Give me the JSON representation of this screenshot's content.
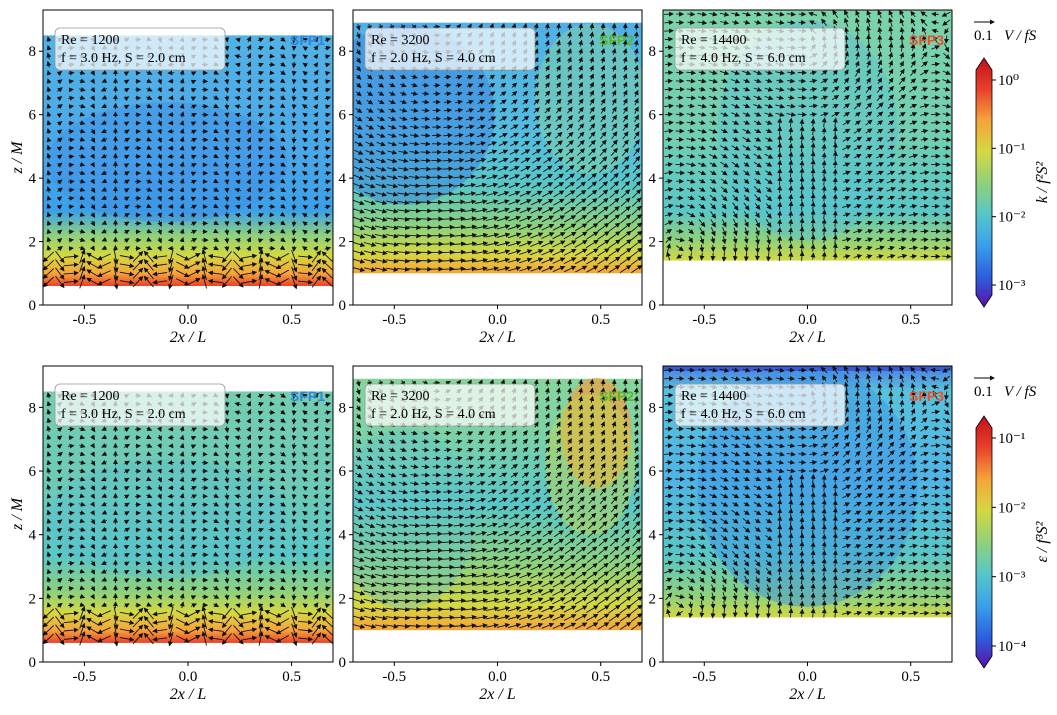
{
  "chart_data": [
    {
      "type": "heatmap",
      "panel_tag": "SFP1",
      "tag_color": "#2e86de",
      "info_line1": "Re = 1200",
      "info_line2": "f = 3.0 Hz, S = 2.0 cm",
      "xlabel": "2x / L",
      "ylabel": "z / M",
      "xlim": [
        -0.7,
        0.7
      ],
      "ylim": [
        0,
        9.3
      ],
      "fluid_range_z": [
        0.6,
        8.5
      ],
      "xticks": [
        "-0.5",
        "0.0",
        "0.5"
      ],
      "yticks": [
        "0",
        "2",
        "4",
        "6",
        "8"
      ],
      "field": "k / f²S²"
    },
    {
      "type": "heatmap",
      "panel_tag": "SFP2",
      "tag_color": "#55b82a",
      "info_line1": "Re = 3200",
      "info_line2": "f = 2.0 Hz, S = 4.0 cm",
      "xlabel": "2x / L",
      "ylabel": "",
      "xlim": [
        -0.7,
        0.7
      ],
      "ylim": [
        0,
        9.3
      ],
      "fluid_range_z": [
        1.0,
        8.9
      ],
      "xticks": [
        "-0.5",
        "0.0",
        "0.5"
      ],
      "yticks": [
        "0",
        "2",
        "4",
        "6",
        "8"
      ],
      "field": "k / f²S²"
    },
    {
      "type": "heatmap",
      "panel_tag": "SFP3",
      "tag_color": "#e8502a",
      "info_line1": "Re = 14400",
      "info_line2": "f = 4.0 Hz, S = 6.0 cm",
      "xlabel": "2x / L",
      "ylabel": "",
      "xlim": [
        -0.7,
        0.7
      ],
      "ylim": [
        0,
        9.3
      ],
      "fluid_range_z": [
        1.4,
        9.3
      ],
      "xticks": [
        "-0.5",
        "0.0",
        "0.5"
      ],
      "yticks": [
        "0",
        "2",
        "4",
        "6",
        "8"
      ],
      "field": "k / f²S²"
    },
    {
      "type": "heatmap",
      "panel_tag": "SFP1",
      "tag_color": "#2e86de",
      "info_line1": "Re = 1200",
      "info_line2": "f = 3.0 Hz, S = 2.0 cm",
      "xlabel": "2x / L",
      "ylabel": "z / M",
      "xlim": [
        -0.7,
        0.7
      ],
      "ylim": [
        0,
        9.3
      ],
      "fluid_range_z": [
        0.6,
        8.5
      ],
      "xticks": [
        "-0.5",
        "0.0",
        "0.5"
      ],
      "yticks": [
        "0",
        "2",
        "4",
        "6",
        "8"
      ],
      "field": "ε / f³S²"
    },
    {
      "type": "heatmap",
      "panel_tag": "SFP2",
      "tag_color": "#55b82a",
      "info_line1": "Re = 3200",
      "info_line2": "f = 2.0 Hz, S = 4.0 cm",
      "xlabel": "2x / L",
      "ylabel": "",
      "xlim": [
        -0.7,
        0.7
      ],
      "ylim": [
        0,
        9.3
      ],
      "fluid_range_z": [
        1.0,
        8.9
      ],
      "xticks": [
        "-0.5",
        "0.0",
        "0.5"
      ],
      "yticks": [
        "0",
        "2",
        "4",
        "6",
        "8"
      ],
      "field": "ε / f³S²"
    },
    {
      "type": "heatmap",
      "panel_tag": "SFP3",
      "tag_color": "#e8502a",
      "info_line1": "Re = 14400",
      "info_line2": "f = 4.0 Hz, S = 6.0 cm",
      "xlabel": "2x / L",
      "ylabel": "",
      "xlim": [
        -0.7,
        0.7
      ],
      "ylim": [
        0,
        9.3
      ],
      "fluid_range_z": [
        1.4,
        9.3
      ],
      "xticks": [
        "-0.5",
        "0.0",
        "0.5"
      ],
      "yticks": [
        "0",
        "2",
        "4",
        "6",
        "8"
      ],
      "field": "ε / f³S²"
    }
  ],
  "colorbars": [
    {
      "label": "k / f²S²",
      "scale": "log",
      "ticks": [
        "10⁰",
        "10⁻¹",
        "10⁻²",
        "10⁻³"
      ],
      "range": [
        0.0005,
        1
      ],
      "quiver_key": "0.1",
      "quiver_label": "V / fS"
    },
    {
      "label": "ε / f³S²",
      "scale": "log",
      "ticks": [
        "10⁻¹",
        "10⁻²",
        "10⁻³",
        "10⁻⁴"
      ],
      "range": [
        5e-05,
        0.1
      ],
      "quiver_key": "0.1",
      "quiver_label": "V / fS"
    }
  ],
  "colormap": [
    "#5a0fa8",
    "#2a62e0",
    "#3aa0ea",
    "#58c7c7",
    "#8fd27a",
    "#d4d842",
    "#f6a43a",
    "#e8402a",
    "#c4101a"
  ]
}
